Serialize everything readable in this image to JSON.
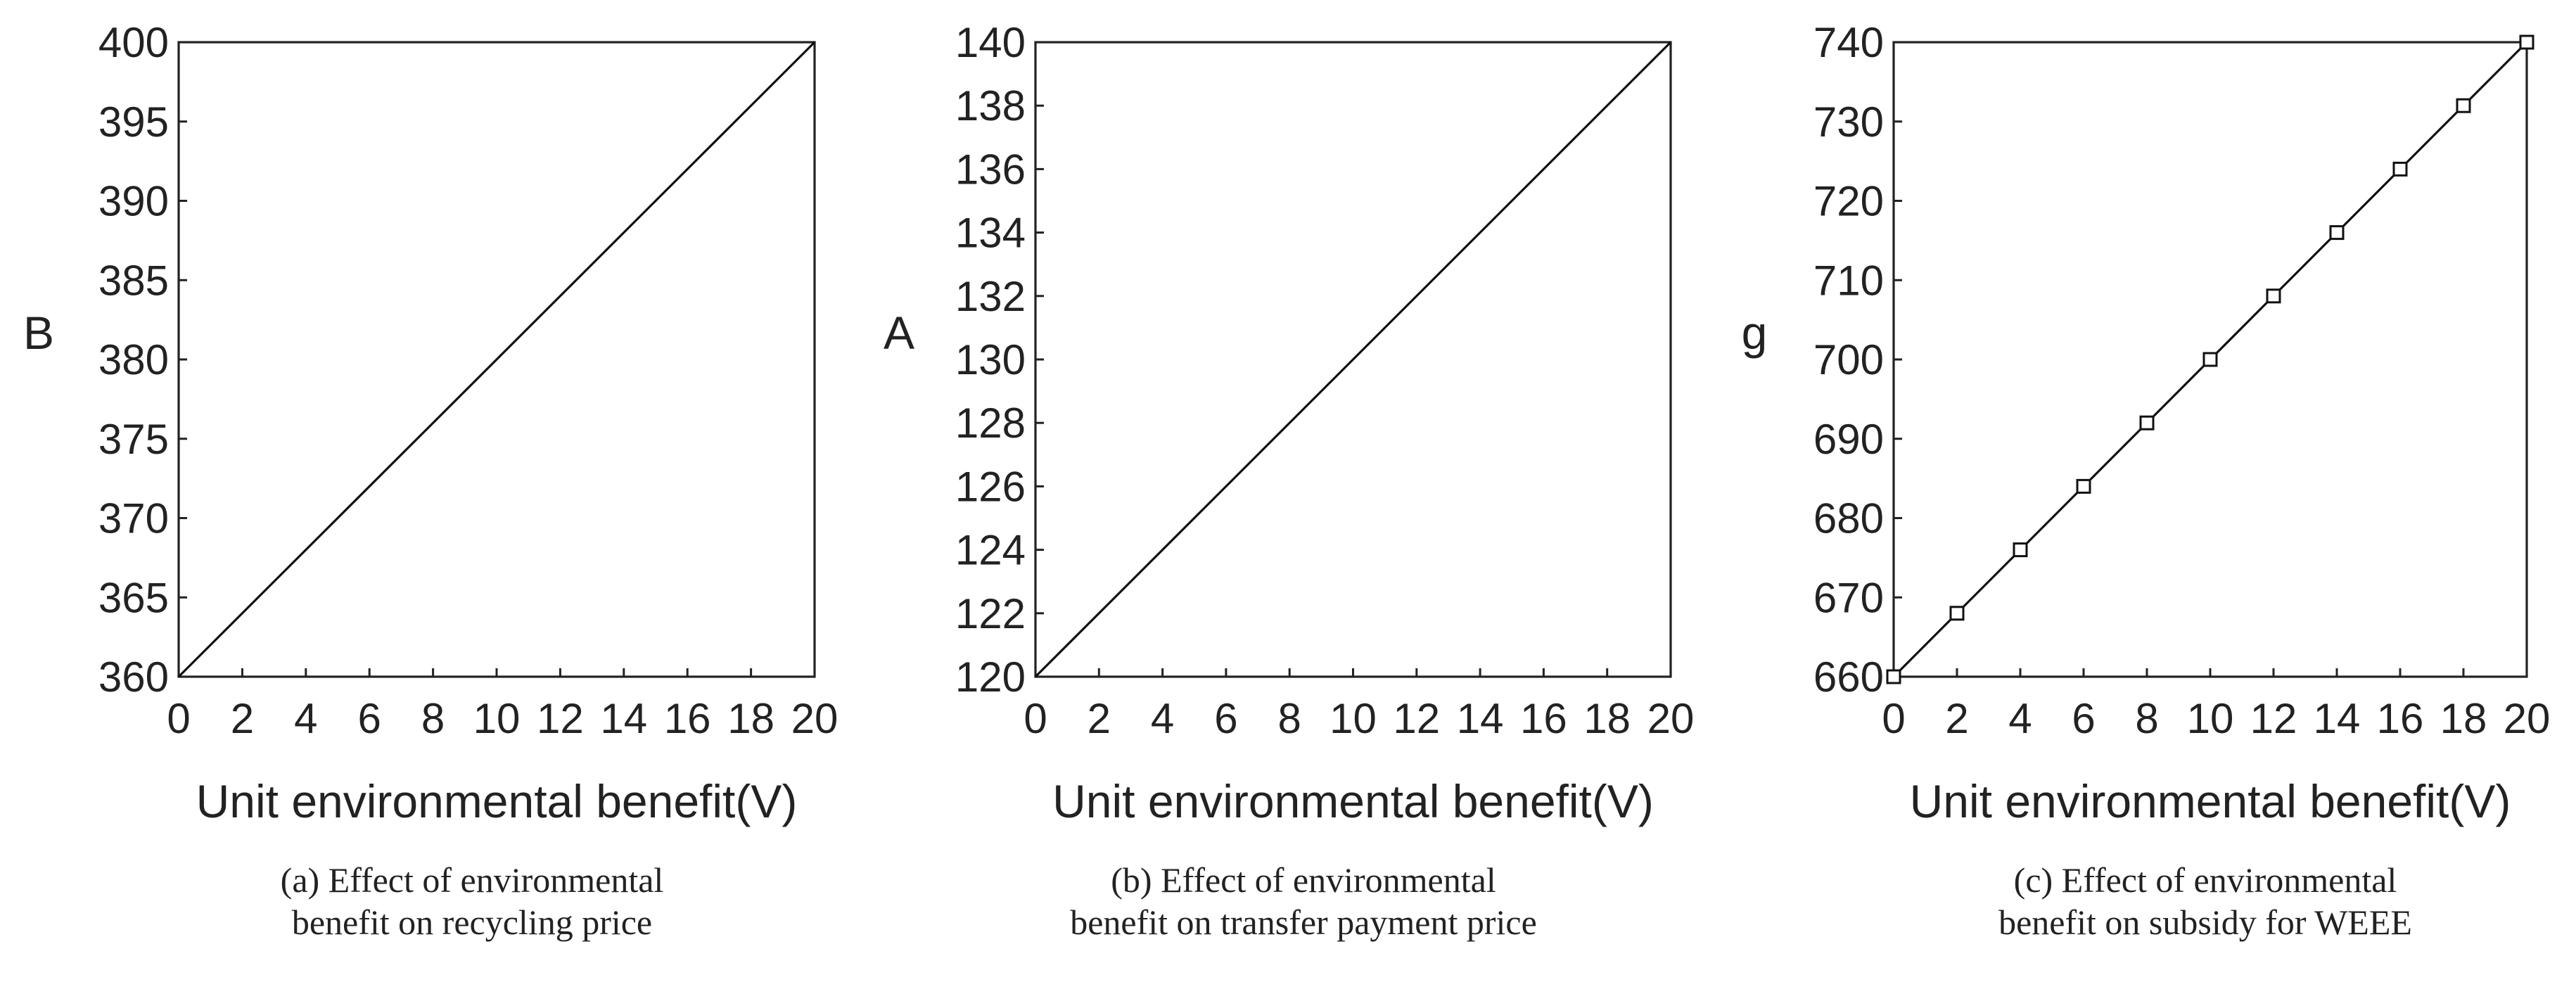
{
  "chart_data": [
    {
      "type": "line",
      "xlabel": "Unit environmental benefit(V)",
      "ylabel": "B",
      "xlim": [
        0,
        20
      ],
      "ylim": [
        360,
        400
      ],
      "x_ticks": [
        "0",
        "2",
        "4",
        "6",
        "8",
        "10",
        "12",
        "14",
        "16",
        "18",
        "20"
      ],
      "y_ticks": [
        "400",
        "395",
        "390",
        "385",
        "380",
        "375",
        "370",
        "365",
        "360"
      ],
      "caption_lines": [
        "(a) Effect of environmental",
        "benefit on recycling price"
      ],
      "markers": false,
      "series": [
        {
          "x": [
            0,
            20
          ],
          "y": [
            360,
            400
          ]
        }
      ]
    },
    {
      "type": "line",
      "xlabel": "Unit environmental benefit(V)",
      "ylabel": "A",
      "xlim": [
        0,
        20
      ],
      "ylim": [
        120,
        140
      ],
      "x_ticks": [
        "0",
        "2",
        "4",
        "6",
        "8",
        "10",
        "12",
        "14",
        "16",
        "18",
        "20"
      ],
      "y_ticks": [
        "140",
        "138",
        "136",
        "134",
        "132",
        "130",
        "128",
        "126",
        "124",
        "122",
        "120"
      ],
      "caption_lines": [
        "(b) Effect of environmental",
        "benefit on transfer payment price"
      ],
      "markers": false,
      "series": [
        {
          "x": [
            0,
            20
          ],
          "y": [
            120,
            140
          ]
        }
      ]
    },
    {
      "type": "line",
      "xlabel": "Unit environmental benefit(V)",
      "ylabel": "g",
      "xlim": [
        0,
        20
      ],
      "ylim": [
        660,
        740
      ],
      "x_ticks": [
        "0",
        "2",
        "4",
        "6",
        "8",
        "10",
        "12",
        "14",
        "16",
        "18",
        "20"
      ],
      "y_ticks": [
        "740",
        "730",
        "720",
        "710",
        "700",
        "690",
        "680",
        "670",
        "660"
      ],
      "caption_lines": [
        "(c) Effect of environmental",
        "benefit on subsidy for WEEE"
      ],
      "markers": true,
      "marker_shape": "square",
      "series": [
        {
          "x": [
            0,
            2,
            4,
            6,
            8,
            10,
            12,
            14,
            16,
            18,
            20
          ],
          "y": [
            660,
            668,
            676,
            684,
            692,
            700,
            708,
            716,
            724,
            732,
            740
          ]
        }
      ]
    }
  ]
}
